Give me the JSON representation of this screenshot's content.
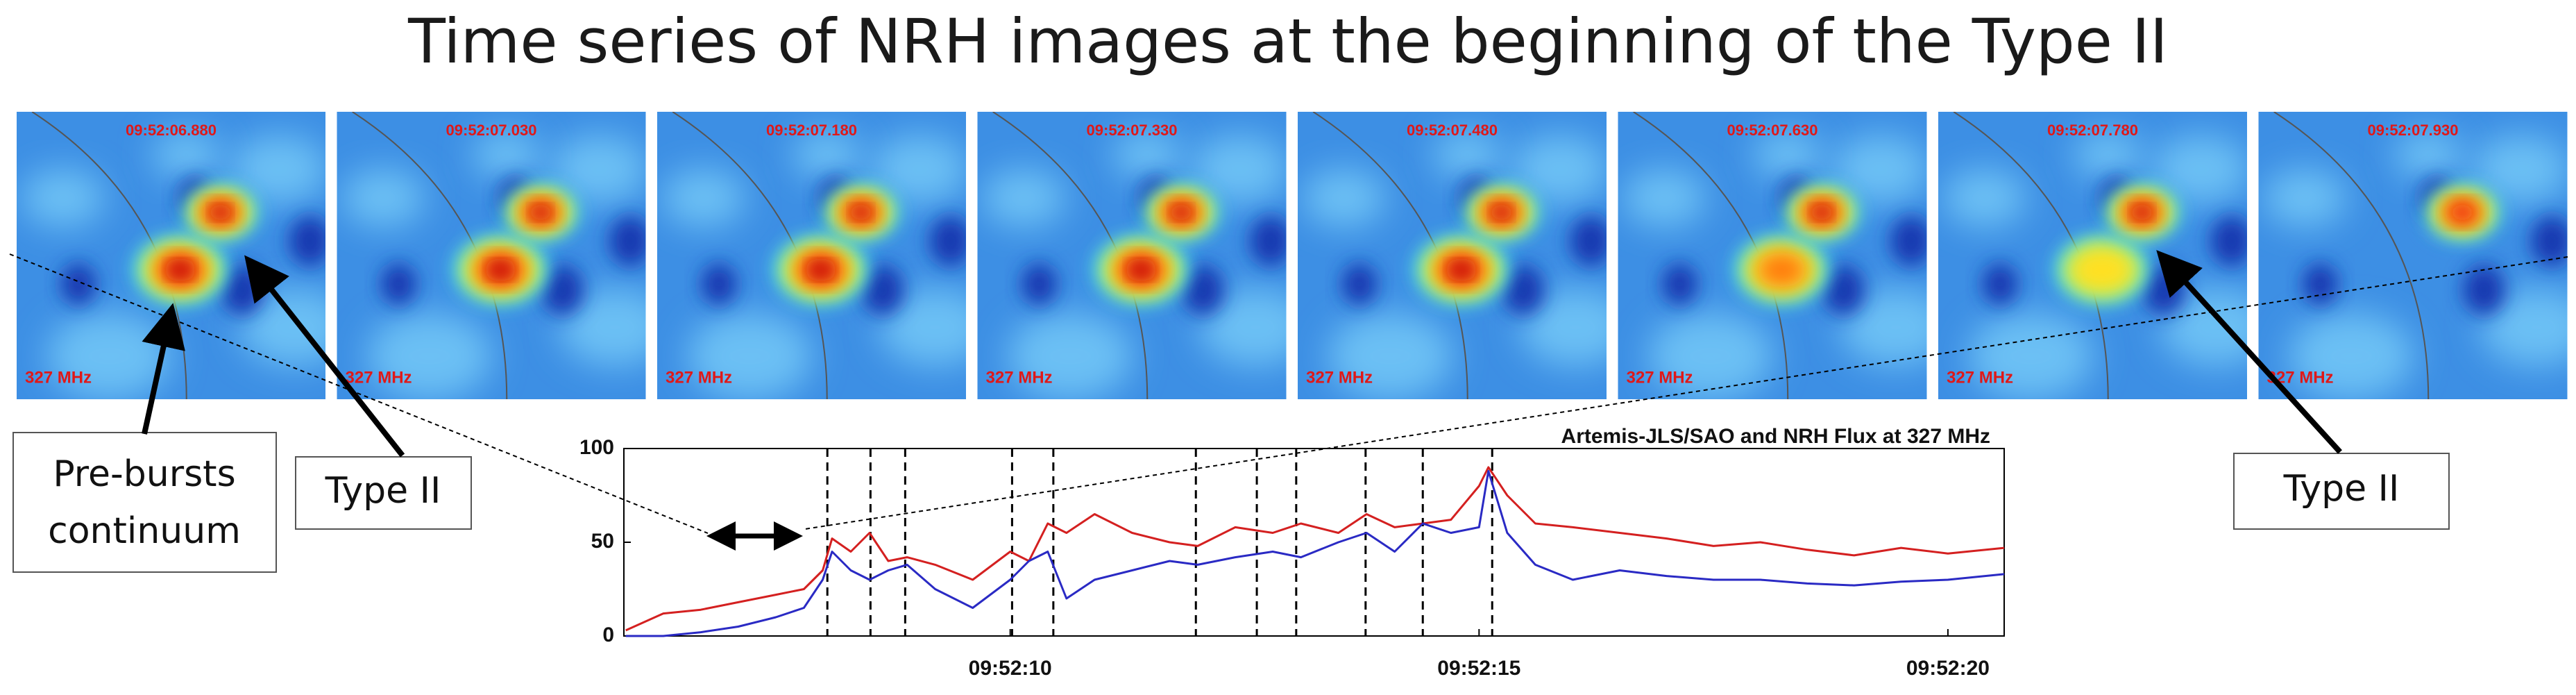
{
  "title": "Time series of NRH images at the beginning of the Type II",
  "panels": [
    {
      "time": "09:52:06.880",
      "frequency": "327 MHz"
    },
    {
      "time": "09:52:07.030",
      "frequency": "327 MHz"
    },
    {
      "time": "09:52:07.180",
      "frequency": "327 MHz"
    },
    {
      "time": "09:52:07.330",
      "frequency": "327 MHz"
    },
    {
      "time": "09:52:07.480",
      "frequency": "327 MHz"
    },
    {
      "time": "09:52:07.630",
      "frequency": "327 MHz"
    },
    {
      "time": "09:52:07.780",
      "frequency": "327 MHz"
    },
    {
      "time": "09:52:07.930",
      "frequency": "327 MHz"
    }
  ],
  "annotations": [
    {
      "lines": [
        "Pre-bursts",
        "continuum"
      ]
    },
    {
      "lines": [
        "Type II"
      ]
    },
    {
      "lines": [
        "Type II"
      ]
    }
  ],
  "chart_data": {
    "type": "line",
    "title": "Artemis-JLS/SAO and NRH Flux at 327 MHz",
    "x": [
      5.9,
      6.3,
      6.7,
      7.1,
      7.5,
      7.8,
      8.0,
      8.1,
      8.3,
      8.5,
      8.7,
      8.9,
      9.2,
      9.6,
      10.0,
      10.2,
      10.4,
      10.6,
      10.9,
      11.3,
      11.7,
      12.0,
      12.4,
      12.8,
      13.1,
      13.5,
      13.8,
      14.1,
      14.4,
      14.7,
      15.0,
      15.1,
      15.3,
      15.6,
      16.0,
      16.5,
      17.0,
      17.5,
      18.0,
      18.5,
      19.0,
      19.5,
      20.0,
      20.6
    ],
    "series": [
      {
        "color": "#d42020",
        "values": [
          3,
          12,
          14,
          18,
          22,
          25,
          35,
          52,
          45,
          55,
          40,
          42,
          38,
          30,
          45,
          40,
          60,
          55,
          65,
          55,
          50,
          48,
          58,
          55,
          60,
          55,
          65,
          58,
          60,
          62,
          80,
          90,
          75,
          60,
          58,
          55,
          52,
          48,
          50,
          46,
          43,
          47,
          44,
          47
        ]
      },
      {
        "color": "#2a2ac4",
        "values": [
          0,
          0,
          2,
          5,
          10,
          15,
          30,
          45,
          35,
          30,
          35,
          38,
          25,
          15,
          30,
          40,
          45,
          20,
          30,
          35,
          40,
          38,
          42,
          45,
          42,
          50,
          55,
          45,
          60,
          55,
          58,
          88,
          55,
          38,
          30,
          35,
          32,
          30,
          30,
          28,
          27,
          29,
          30,
          33
        ]
      }
    ],
    "markers": [
      8.05,
      8.51,
      8.88,
      10.02,
      10.46,
      11.98,
      12.63,
      13.05,
      13.79,
      14.4,
      15.14
    ],
    "xlim": [
      5.88,
      20.6
    ],
    "xticks": [
      {
        "value": 10,
        "label": "09:52:10"
      },
      {
        "value": 15,
        "label": "09:52:15"
      },
      {
        "value": 20,
        "label": "09:52:20"
      }
    ],
    "ylim": [
      0,
      100
    ],
    "yticks": [
      0,
      50,
      100
    ]
  }
}
